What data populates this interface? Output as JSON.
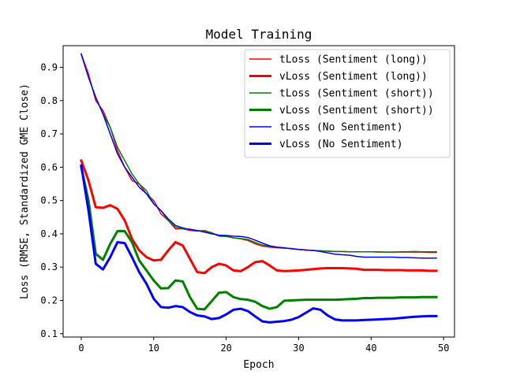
{
  "chart_data": {
    "type": "line",
    "title": "Model Training",
    "xlabel": "Epoch",
    "ylabel": "Loss (RMSE, Standardized GME Close)",
    "xlim": [
      -2.5,
      51.5
    ],
    "ylim": [
      0.09,
      0.965
    ],
    "x_ticks": [
      0,
      10,
      20,
      30,
      40,
      50
    ],
    "y_ticks": [
      0.1,
      0.2,
      0.3,
      0.4,
      0.5,
      0.6,
      0.7,
      0.8,
      0.9
    ],
    "grid": false,
    "legend_position": "top-right",
    "series": [
      {
        "name": "tLoss (Sentiment (long))",
        "color": "#ff0000",
        "linewidth": 1.5,
        "x": [
          0,
          1,
          2,
          3,
          4,
          5,
          6,
          7,
          8,
          9,
          10,
          11,
          12,
          13,
          14,
          15,
          16,
          17,
          18,
          19,
          20,
          21,
          22,
          23,
          24,
          25,
          26,
          27,
          28,
          29,
          30,
          31,
          32,
          33,
          34,
          35,
          36,
          37,
          38,
          39,
          40,
          41,
          42,
          43,
          44,
          45,
          46,
          47,
          48,
          49
        ],
        "values": [
          0.94,
          0.88,
          0.8,
          0.77,
          0.72,
          0.65,
          0.6,
          0.56,
          0.55,
          0.52,
          0.5,
          0.46,
          0.44,
          0.415,
          0.415,
          0.41,
          0.408,
          0.41,
          0.403,
          0.395,
          0.393,
          0.388,
          0.385,
          0.38,
          0.37,
          0.363,
          0.36,
          0.358,
          0.357,
          0.356,
          0.353,
          0.352,
          0.35,
          0.349,
          0.348,
          0.347,
          0.347,
          0.346,
          0.346,
          0.346,
          0.346,
          0.345,
          0.345,
          0.345,
          0.345,
          0.345,
          0.345,
          0.345,
          0.344,
          0.344
        ]
      },
      {
        "name": "vLoss (Sentiment (long))",
        "color": "#ff0000",
        "linewidth": 3,
        "x": [
          0,
          1,
          2,
          3,
          4,
          5,
          6,
          7,
          8,
          9,
          10,
          11,
          12,
          13,
          14,
          15,
          16,
          17,
          18,
          19,
          20,
          21,
          22,
          23,
          24,
          25,
          26,
          27,
          28,
          29,
          30,
          31,
          32,
          33,
          34,
          35,
          36,
          37,
          38,
          39,
          40,
          41,
          42,
          43,
          44,
          45,
          46,
          47,
          48,
          49
        ],
        "values": [
          0.62,
          0.56,
          0.48,
          0.478,
          0.486,
          0.475,
          0.44,
          0.385,
          0.35,
          0.33,
          0.32,
          0.322,
          0.35,
          0.375,
          0.365,
          0.325,
          0.285,
          0.282,
          0.3,
          0.31,
          0.305,
          0.29,
          0.288,
          0.3,
          0.315,
          0.318,
          0.305,
          0.29,
          0.288,
          0.289,
          0.29,
          0.292,
          0.294,
          0.296,
          0.297,
          0.297,
          0.297,
          0.296,
          0.295,
          0.292,
          0.292,
          0.292,
          0.291,
          0.291,
          0.291,
          0.29,
          0.29,
          0.29,
          0.289,
          0.289
        ]
      },
      {
        "name": "tLoss (Sentiment (short))",
        "color": "#008000",
        "linewidth": 1.5,
        "x": [
          0,
          1,
          2,
          3,
          4,
          5,
          6,
          7,
          8,
          9,
          10,
          11,
          12,
          13,
          14,
          15,
          16,
          17,
          18,
          19,
          20,
          21,
          22,
          23,
          24,
          25,
          26,
          27,
          28,
          29,
          30,
          31,
          32,
          33,
          34,
          35,
          36,
          37,
          38,
          39,
          40,
          41,
          42,
          43,
          44,
          45,
          46,
          47,
          48,
          49
        ],
        "values": [
          0.94,
          0.87,
          0.81,
          0.76,
          0.72,
          0.66,
          0.62,
          0.58,
          0.55,
          0.53,
          0.49,
          0.47,
          0.44,
          0.42,
          0.415,
          0.414,
          0.41,
          0.408,
          0.403,
          0.393,
          0.392,
          0.388,
          0.386,
          0.383,
          0.374,
          0.366,
          0.362,
          0.36,
          0.358,
          0.355,
          0.353,
          0.351,
          0.35,
          0.349,
          0.348,
          0.347,
          0.347,
          0.346,
          0.346,
          0.346,
          0.346,
          0.346,
          0.345,
          0.345,
          0.346,
          0.346,
          0.347,
          0.346,
          0.346,
          0.346
        ]
      },
      {
        "name": "vLoss (Sentiment (short))",
        "color": "#008000",
        "linewidth": 3,
        "x": [
          0,
          1,
          2,
          3,
          4,
          5,
          6,
          7,
          8,
          9,
          10,
          11,
          12,
          13,
          14,
          15,
          16,
          17,
          18,
          19,
          20,
          21,
          22,
          23,
          24,
          25,
          26,
          27,
          28,
          29,
          30,
          31,
          32,
          33,
          34,
          35,
          36,
          37,
          38,
          39,
          40,
          41,
          42,
          43,
          44,
          45,
          46,
          47,
          48,
          49
        ],
        "values": [
          0.6,
          0.5,
          0.34,
          0.322,
          0.37,
          0.408,
          0.408,
          0.375,
          0.32,
          0.29,
          0.26,
          0.236,
          0.237,
          0.26,
          0.257,
          0.21,
          0.175,
          0.173,
          0.198,
          0.223,
          0.225,
          0.21,
          0.204,
          0.202,
          0.196,
          0.183,
          0.175,
          0.18,
          0.199,
          0.2,
          0.201,
          0.202,
          0.202,
          0.202,
          0.202,
          0.202,
          0.203,
          0.204,
          0.205,
          0.207,
          0.207,
          0.208,
          0.208,
          0.208,
          0.209,
          0.209,
          0.209,
          0.21,
          0.21,
          0.21
        ]
      },
      {
        "name": "tLoss (No Sentiment)",
        "color": "#0000ff",
        "linewidth": 1.5,
        "x": [
          0,
          1,
          2,
          3,
          4,
          5,
          6,
          7,
          8,
          9,
          10,
          11,
          12,
          13,
          14,
          15,
          16,
          17,
          18,
          19,
          20,
          21,
          22,
          23,
          24,
          25,
          26,
          27,
          28,
          29,
          30,
          31,
          32,
          33,
          34,
          35,
          36,
          37,
          38,
          39,
          40,
          41,
          42,
          43,
          44,
          45,
          46,
          47,
          48,
          49
        ],
        "values": [
          0.94,
          0.87,
          0.81,
          0.76,
          0.7,
          0.64,
          0.6,
          0.57,
          0.54,
          0.52,
          0.49,
          0.47,
          0.445,
          0.425,
          0.418,
          0.413,
          0.41,
          0.405,
          0.4,
          0.396,
          0.395,
          0.393,
          0.392,
          0.389,
          0.381,
          0.372,
          0.364,
          0.36,
          0.358,
          0.355,
          0.353,
          0.351,
          0.35,
          0.347,
          0.343,
          0.339,
          0.337,
          0.336,
          0.332,
          0.33,
          0.33,
          0.33,
          0.33,
          0.33,
          0.329,
          0.329,
          0.328,
          0.327,
          0.327,
          0.327
        ]
      },
      {
        "name": "vLoss (No Sentiment)",
        "color": "#0000ff",
        "linewidth": 3,
        "x": [
          0,
          1,
          2,
          3,
          4,
          5,
          6,
          7,
          8,
          9,
          10,
          11,
          12,
          13,
          14,
          15,
          16,
          17,
          18,
          19,
          20,
          21,
          22,
          23,
          24,
          25,
          26,
          27,
          28,
          29,
          30,
          31,
          32,
          33,
          34,
          35,
          36,
          37,
          38,
          39,
          40,
          41,
          42,
          43,
          44,
          45,
          46,
          47,
          48,
          49
        ],
        "values": [
          0.605,
          0.47,
          0.31,
          0.293,
          0.33,
          0.375,
          0.372,
          0.33,
          0.285,
          0.25,
          0.205,
          0.18,
          0.178,
          0.183,
          0.18,
          0.165,
          0.155,
          0.152,
          0.144,
          0.147,
          0.158,
          0.172,
          0.175,
          0.168,
          0.152,
          0.137,
          0.134,
          0.136,
          0.138,
          0.142,
          0.15,
          0.163,
          0.176,
          0.172,
          0.155,
          0.143,
          0.14,
          0.14,
          0.14,
          0.141,
          0.142,
          0.143,
          0.144,
          0.145,
          0.147,
          0.149,
          0.151,
          0.152,
          0.153,
          0.153
        ]
      }
    ]
  }
}
